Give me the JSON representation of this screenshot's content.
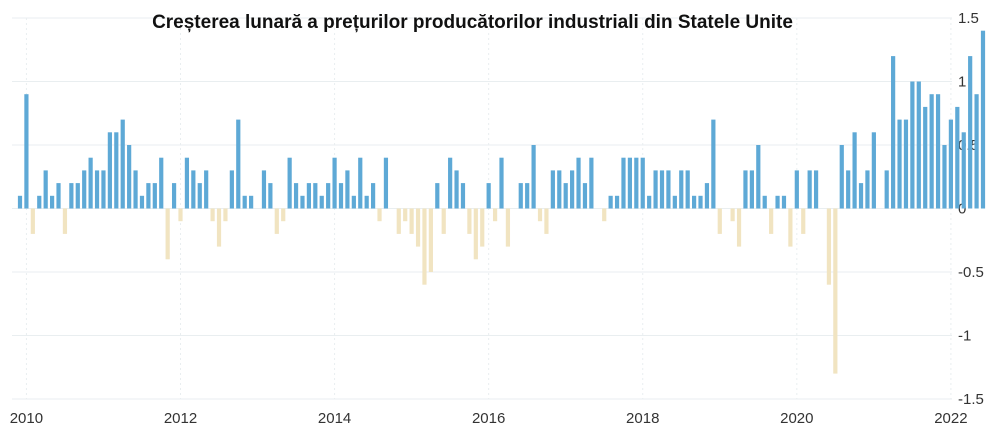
{
  "chart_data": {
    "type": "bar",
    "title": "Creșterea lunară a prețurilor producătorilor industriali din Statele Unite",
    "xlabel": "",
    "ylabel": "",
    "ylim": [
      -1.5,
      1.5
    ],
    "yticks": [
      1.5,
      1,
      0.5,
      0,
      -0.5,
      -1,
      -1.5
    ],
    "ytick_labels": [
      "1.5",
      "1",
      "0.5",
      "0",
      "-0.5",
      "-1",
      "-1.5"
    ],
    "xtick_labels": [
      "2010",
      "2012",
      "2014",
      "2016",
      "2018",
      "2020",
      "2022"
    ],
    "x_start": "2009-12",
    "x_end": "2022-03",
    "grid": true,
    "y_axis_position": "right",
    "colors": {
      "positive": "#5ea9d6",
      "negative": "#f1e4c1",
      "grid": "#e9eef0",
      "text": "#333333"
    },
    "values": [
      0.1,
      0.9,
      -0.2,
      0.1,
      0.3,
      0.1,
      0.2,
      -0.2,
      0.2,
      0.2,
      0.3,
      0.4,
      0.3,
      0.3,
      0.6,
      0.6,
      0.7,
      0.5,
      0.3,
      0.1,
      0.2,
      0.2,
      0.4,
      -0.4,
      0.2,
      -0.1,
      0.4,
      0.3,
      0.2,
      0.3,
      -0.1,
      -0.3,
      -0.1,
      0.3,
      0.7,
      0.1,
      0.1,
      0.0,
      0.3,
      0.2,
      -0.2,
      -0.1,
      0.4,
      0.2,
      0.1,
      0.2,
      0.2,
      0.1,
      0.2,
      0.4,
      0.2,
      0.3,
      0.1,
      0.4,
      0.1,
      0.2,
      -0.1,
      0.4,
      0.0,
      -0.2,
      -0.1,
      -0.2,
      -0.3,
      -0.6,
      -0.5,
      0.2,
      -0.2,
      0.4,
      0.3,
      0.2,
      -0.2,
      -0.4,
      -0.3,
      0.2,
      -0.1,
      0.4,
      -0.3,
      0.0,
      0.2,
      0.2,
      0.5,
      -0.1,
      -0.2,
      0.3,
      0.3,
      0.2,
      0.3,
      0.4,
      0.2,
      0.4,
      0.0,
      -0.1,
      0.1,
      0.1,
      0.4,
      0.4,
      0.4,
      0.4,
      0.1,
      0.3,
      0.3,
      0.3,
      0.1,
      0.3,
      0.3,
      0.1,
      0.1,
      0.2,
      0.7,
      -0.2,
      0.0,
      -0.1,
      -0.3,
      0.3,
      0.3,
      0.5,
      0.1,
      -0.2,
      0.1,
      0.1,
      -0.3,
      0.3,
      -0.2,
      0.3,
      0.3,
      0.0,
      -0.6,
      -1.3,
      0.5,
      0.3,
      0.6,
      0.2,
      0.3,
      0.6,
      0.0,
      0.3,
      1.2,
      0.7,
      0.7,
      1.0,
      1.0,
      0.8,
      0.9,
      0.9,
      0.5,
      0.7,
      0.8,
      0.6,
      1.2,
      0.9,
      1.4
    ]
  }
}
